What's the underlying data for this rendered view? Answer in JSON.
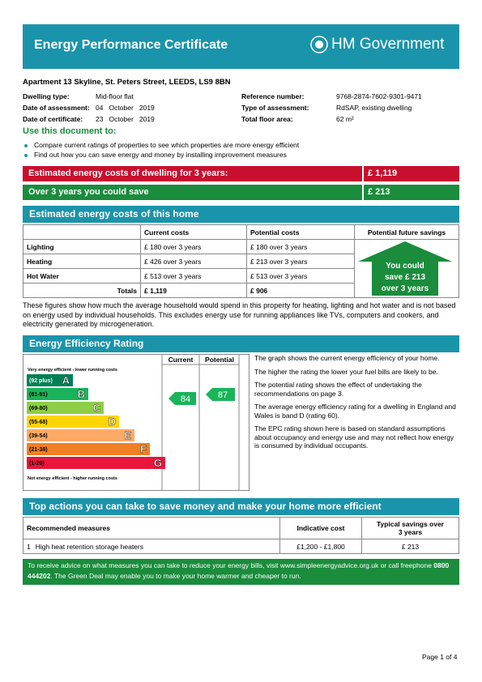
{
  "header": {
    "title": "Energy Performance Certificate",
    "logo": "HM Government"
  },
  "address": "Apartment 13 Skyline, St. Peters Street, LEEDS, LS9 8BN",
  "details": {
    "left": [
      [
        "Dwelling type:",
        "Mid-floor flat"
      ],
      [
        "Date of assessment:",
        "04   October   2019"
      ],
      [
        "Date of certificate:",
        "23   October   2019"
      ]
    ],
    "right": [
      [
        "Reference number:",
        "9768-2874-7602-9301-9471"
      ],
      [
        "Type of assessment:",
        "RdSAP, existing dwelling"
      ],
      [
        "Total floor area:",
        "62 m²"
      ]
    ]
  },
  "use": {
    "heading": "Use this document to:",
    "bullets": [
      "Compare current ratings of properties to see which properties are more energy efficient",
      "Find out how you can save energy and money by installing improvement measures"
    ]
  },
  "summary": [
    [
      "Estimated energy costs of dwelling for 3 years:",
      "£ 1,119"
    ],
    [
      "Over 3 years you could save",
      "£ 213"
    ]
  ],
  "costs": {
    "heading": "Estimated energy costs of this home",
    "columns": [
      "Current costs",
      "Potential costs",
      "Potential future savings"
    ],
    "rows": [
      [
        "Lighting",
        "£ 180 over 3 years",
        "£ 180 over 3 years"
      ],
      [
        "Heating",
        "£ 426 over 3 years",
        "£ 213 over 3 years"
      ],
      [
        "Hot Water",
        "£ 513 over 3 years",
        "£ 513 over 3 years"
      ],
      [
        "Totals",
        "£ 1,119",
        "£ 906"
      ]
    ],
    "savings": [
      "You could",
      "save £ 213",
      "over 3 years"
    ],
    "note": "These figures show how much the average household would spend in this property for heating, lighting and hot water and is not based on energy used by individual households. This excludes energy use for running appliances like TVs, computers and cookers, and electricity generated by microgeneration."
  },
  "rating": {
    "heading": "Energy Efficiency Rating",
    "current_label": "Current",
    "potential_label": "Potential",
    "top": "Very energy efficient - lower running costs",
    "bottom": "Not energy efficient - higher running costs",
    "bands": [
      {
        "range": "(92 plus)",
        "letter": "A",
        "color": "#008054"
      },
      {
        "range": "(81-91)",
        "letter": "B",
        "color": "#19b459"
      },
      {
        "range": "(69-80)",
        "letter": "C",
        "color": "#8dce46"
      },
      {
        "range": "(55-68)",
        "letter": "D",
        "color": "#ffd500"
      },
      {
        "range": "(39-54)",
        "letter": "E",
        "color": "#fcaa65"
      },
      {
        "range": "(21-38)",
        "letter": "F",
        "color": "#ef8023"
      },
      {
        "range": "(1-20)",
        "letter": "G",
        "color": "#e9153b"
      }
    ],
    "current": "84",
    "potential": "87",
    "text": [
      "The graph shows the current energy efficiency of your home.",
      "The higher the rating the lower your fuel bills are likely to be.",
      "The potential rating shows the effect of undertaking the recommendations on page 3.",
      "The average energy efficiency rating for a dwelling in England and Wales is band D (rating 60).",
      "The EPC rating shown here is based on standard assumptions about occupancy and energy use and may not reflect how energy is consumed by individual occupants."
    ]
  },
  "actions": {
    "heading": "Top actions you can take to save money and make your home more efficient",
    "columns": [
      "Recommended measures",
      "Indicative cost",
      "Typical savings over 3 years"
    ],
    "rows": [
      [
        "1",
        "High heat retention storage heaters",
        "£1,200 - £1,800",
        "£ 213"
      ]
    ]
  },
  "advice": [
    "To receive advice on what measures you can take to reduce your energy bills, visit www.simpleenergyadvice.org.uk or call freephone ",
    "0800 444202",
    ". The Green Deal may enable you to make your home warmer and cheaper to run."
  ],
  "footer": "Page 1 of 4"
}
